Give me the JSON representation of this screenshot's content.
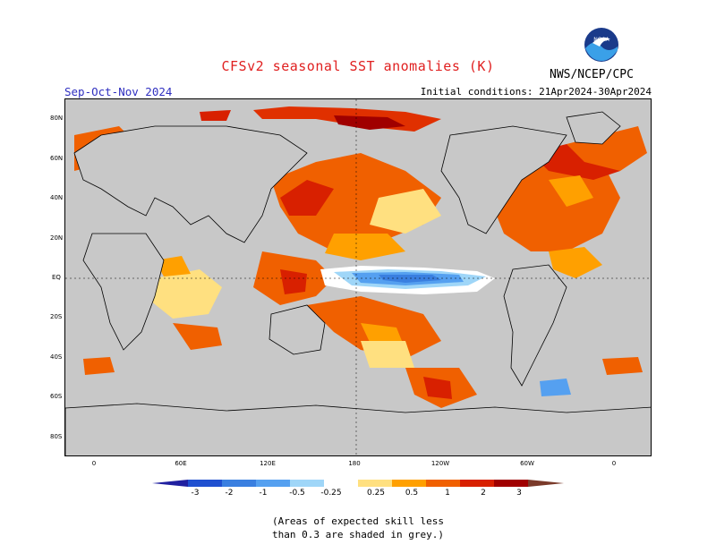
{
  "header": {
    "title": "CFSv2 seasonal SST anomalies (K)",
    "season": "Sep-Oct-Nov 2024",
    "initial_conditions": "Initial conditions: 21Apr2024-30Apr2024",
    "agency": "NWS/NCEP/CPC",
    "logo_text": "NOAA"
  },
  "axes": {
    "lat_labels": [
      "80N",
      "60N",
      "40N",
      "20N",
      "EQ",
      "20S",
      "40S",
      "60S",
      "80S"
    ],
    "lon_labels": [
      "0",
      "60E",
      "120E",
      "180",
      "120W",
      "60W",
      "0"
    ]
  },
  "colorbar": {
    "labels": [
      "-3",
      "-2",
      "-1",
      "-0.5",
      "-0.25",
      "0.25",
      "0.5",
      "1",
      "2",
      "3"
    ],
    "colors": [
      "#2020a0",
      "#1f50d0",
      "#3a7fe0",
      "#55a0f0",
      "#9fd6f8",
      "#ffffff",
      "#ffe080",
      "#ffa000",
      "#f06000",
      "#d82000",
      "#a00000",
      "#7a3a2a"
    ]
  },
  "note": {
    "line1": "(Areas of expected skill less",
    "line2": "than 0.3 are shaded in grey.)"
  }
}
